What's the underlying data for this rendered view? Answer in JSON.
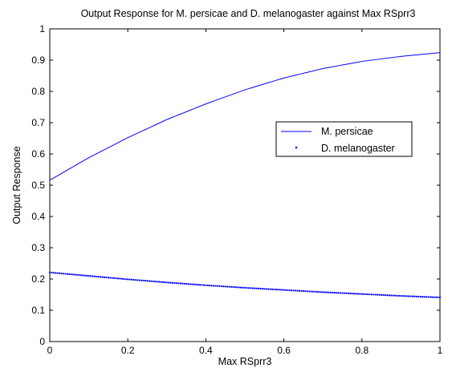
{
  "chart_data": {
    "type": "line",
    "title": "Output Response for M. persicae and D. melanogaster against Max RSprr3",
    "xlabel": "Max RSprr3",
    "ylabel": "Output Response",
    "xlim": [
      0,
      1
    ],
    "ylim": [
      0,
      1
    ],
    "xticks": [
      "0",
      "0.2",
      "0.4",
      "0.6",
      "0.8",
      "1"
    ],
    "yticks": [
      "0",
      "0.1",
      "0.2",
      "0.3",
      "0.4",
      "0.5",
      "0.6",
      "0.7",
      "0.8",
      "0.9",
      "1"
    ],
    "grid": false,
    "legend_position": "right",
    "series": [
      {
        "name": "M. persicae",
        "style": "solid",
        "color": "#0000ff",
        "x": [
          0,
          0.1,
          0.2,
          0.3,
          0.4,
          0.5,
          0.6,
          0.7,
          0.8,
          0.9,
          1.0
        ],
        "y": [
          0.516,
          0.588,
          0.652,
          0.71,
          0.76,
          0.805,
          0.843,
          0.873,
          0.896,
          0.912,
          0.924
        ]
      },
      {
        "name": "D. melanogaster",
        "style": "dotted",
        "color": "#0000ff",
        "x": [
          0,
          0.1,
          0.2,
          0.3,
          0.4,
          0.5,
          0.6,
          0.7,
          0.8,
          0.9,
          1.0
        ],
        "y": [
          0.221,
          0.21,
          0.199,
          0.189,
          0.18,
          0.172,
          0.165,
          0.158,
          0.152,
          0.146,
          0.141
        ]
      }
    ]
  }
}
